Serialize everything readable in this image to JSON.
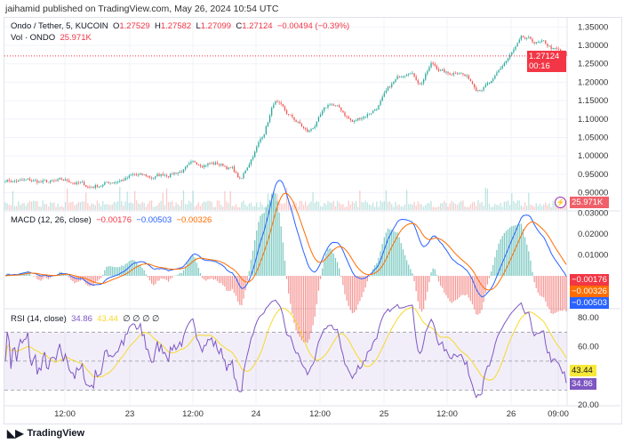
{
  "header": {
    "published": "jaihamid published on TradingView.com, May 26, 2024 10:54 UTC"
  },
  "legend": {
    "symbol": "Ondo / Tether, 5, KUCOIN",
    "o_label": "O",
    "o": "1.27529",
    "h_label": "H",
    "h": "1.27582",
    "l_label": "L",
    "l": "1.27099",
    "c_label": "C",
    "c": "1.27124",
    "change": "−0.00494 (−0.39%)",
    "vol_label": "Vol · ONDO",
    "vol": "25.971K"
  },
  "macd_legend": {
    "label": "MACD (12, 26, close)",
    "macd": "−0.00176",
    "signal": "−0.00503",
    "hist": "−0.00326"
  },
  "rsi_legend": {
    "label": "RSI (14, close)",
    "rsi": "34.86",
    "ma": "43.44",
    "extra": "∅ ∅ ∅ ∅"
  },
  "tags": {
    "price": "1.27124",
    "countdown": "00:16",
    "vol": "25.971K",
    "macd": "−0.00176",
    "hist": "−0.00326",
    "signal": "−0.00503",
    "rsi_ma": "43.44",
    "rsi": "34.86"
  },
  "footer": {
    "brand": "TradingView"
  },
  "colors": {
    "up": "#26a69a",
    "down": "#ef5350",
    "macd": "#2962ff",
    "signal": "#ff6d00",
    "rsi": "#7e57c2",
    "rsi_ma": "#f7d92a"
  },
  "chart_data": [
    {
      "type": "candlestick",
      "title": "Ondo / Tether, 5, KUCOIN",
      "price_axis": [
        "1.35000",
        "1.30000",
        "1.25000",
        "1.20000",
        "1.15000",
        "1.10000",
        "1.05000",
        "1.00000",
        "0.95000",
        "0.90000"
      ],
      "ylim": [
        0.88,
        1.35
      ],
      "close_path_t": [
        0,
        0.04,
        0.09,
        0.12,
        0.15,
        0.2,
        0.23,
        0.26,
        0.31,
        0.36,
        0.39,
        0.405,
        0.42,
        0.44,
        0.46,
        0.48,
        0.5,
        0.52,
        0.54,
        0.56,
        0.58,
        0.6,
        0.62,
        0.66,
        0.69,
        0.72,
        0.74,
        0.76,
        0.79,
        0.81,
        0.84,
        0.87,
        0.89,
        0.92,
        0.96,
        1.0
      ],
      "close_path": [
        0.935,
        0.93,
        0.925,
        0.93,
        0.915,
        0.935,
        0.945,
        0.94,
        0.96,
        0.985,
        0.975,
        0.965,
        0.93,
        1.0,
        1.06,
        1.15,
        1.11,
        1.09,
        1.06,
        1.1,
        1.14,
        1.12,
        1.09,
        1.13,
        1.19,
        1.24,
        1.2,
        1.25,
        1.22,
        1.235,
        1.19,
        1.2,
        1.25,
        1.31,
        1.3,
        1.271
      ]
    },
    {
      "type": "line",
      "title": "MACD (12, 26, close)",
      "axis": [
        "0.03000",
        "0.02000",
        "0.01000"
      ]
    },
    {
      "type": "line",
      "title": "RSI (14, close)",
      "axis": [
        "80.00",
        "60.00",
        "20.00"
      ],
      "bands": [
        30,
        70
      ]
    },
    {
      "type": "axis",
      "x_ticks": [
        "12:00",
        "23",
        "12:00",
        "24",
        "12:00",
        "25",
        "12:00",
        "26",
        "09:00"
      ]
    }
  ]
}
